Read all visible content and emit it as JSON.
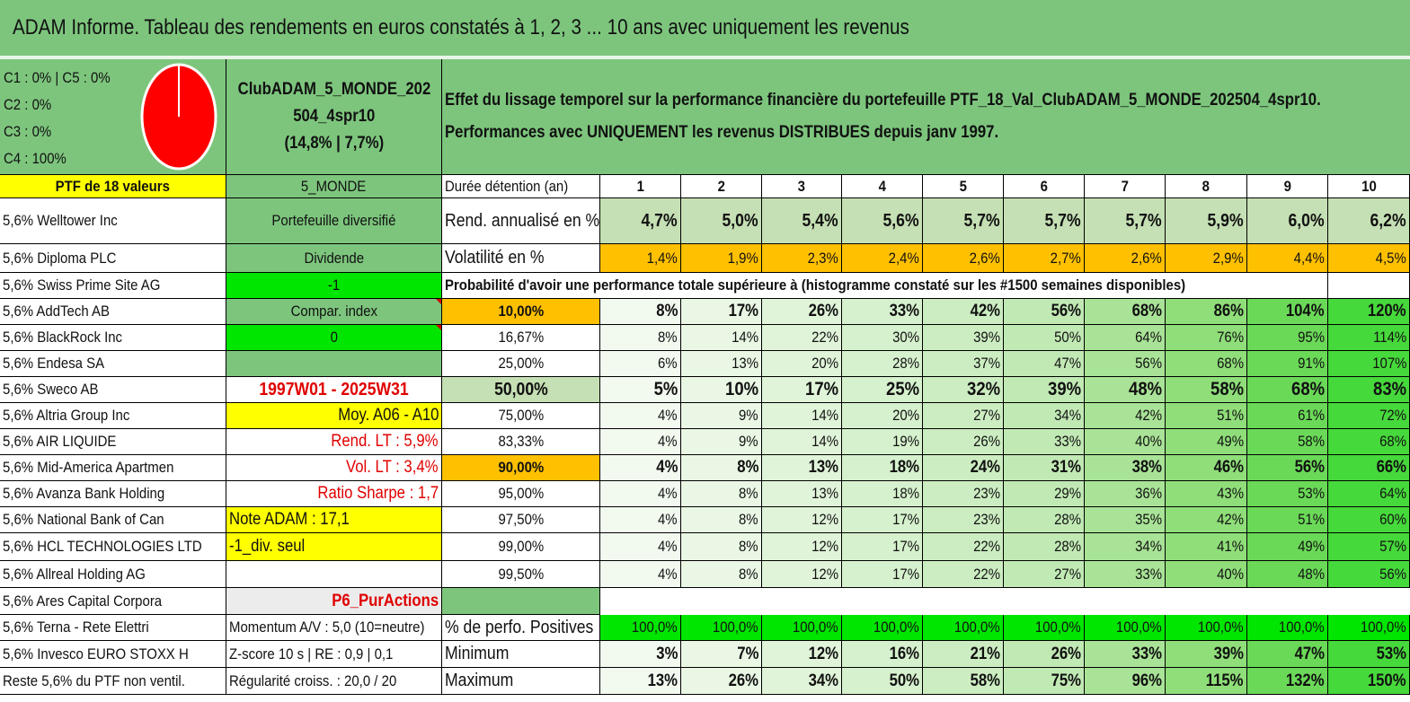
{
  "title": "ADAM Informe. Tableau des rendements en euros constatés à 1, 2, 3 ... 10 ans avec uniquement les revenus",
  "pie": {
    "legend": [
      "C1 : 0% | C5 : 0%",
      "C2 : 0%",
      "C3 : 0%",
      "C4 : 100%"
    ],
    "fill_color": "#ff0000"
  },
  "fund": {
    "name_line1": "ClubADAM_5_MONDE_202",
    "name_line2": "504_4spr10",
    "name_line3": "(14,8% | 7,7%)"
  },
  "description": {
    "line1": "Effet du lissage temporel sur la performance financière du portefeuille PTF_18_Val_ClubADAM_5_MONDE_202504_4spr10.",
    "line2": "Performances avec UNIQUEMENT les revenus DISTRIBUES depuis janv 1997."
  },
  "ptf_header": "PTF de 18 valeurs",
  "category": "5_MONDE",
  "holding_label": "Durée détention (an)",
  "years": [
    "1",
    "2",
    "3",
    "4",
    "5",
    "6",
    "7",
    "8",
    "9",
    "10"
  ],
  "holdings": [
    "5,6% Welltower Inc",
    "5,6% Diploma PLC",
    "5,6% Swiss Prime Site AG",
    "5,6% AddTech AB",
    "5,6% BlackRock Inc",
    "5,6% Endesa SA",
    "5,6% Sweco AB",
    "5,6% Altria Group Inc",
    "5,6% AIR LIQUIDE",
    "5,6% Mid-America Apartmen",
    "5,6% Avanza Bank Holding",
    "5,6% National Bank of Can",
    "5,6% HCL TECHNOLOGIES LTD",
    "5,6% Allreal Holding AG",
    "5,6% Ares Capital Corpora",
    "5,6% Terna - Rete Elettri",
    "5,6% Invesco EURO STOXX H",
    "Reste 5,6% du PTF non ventil."
  ],
  "info": [
    "Portefeuille diversifié",
    "Dividende",
    "-1",
    "Compar. index",
    "0",
    "",
    "1997W01 - 2025W31",
    "Moy. A06 - A10",
    "Rend. LT : 5,9%",
    "Vol. LT : 3,4%",
    "Ratio Sharpe : 1,7",
    "Note ADAM : 17,1",
    "-1_div. seul",
    "",
    "P6_PurActions",
    "Momentum A/V : 5,0 (10=neutre)",
    "Z-score 10 s | RE : 0,9 | 0,1",
    "Régularité croiss. : 20,0 / 20"
  ],
  "rend": {
    "label": "Rend. annualisé en %",
    "values": [
      "4,7%",
      "5,0%",
      "5,4%",
      "5,6%",
      "5,7%",
      "5,7%",
      "5,7%",
      "5,9%",
      "6,0%",
      "6,2%"
    ]
  },
  "vol": {
    "label": "Volatilité en %",
    "values": [
      "1,4%",
      "1,9%",
      "2,3%",
      "2,4%",
      "2,6%",
      "2,7%",
      "2,6%",
      "2,9%",
      "4,4%",
      "4,5%"
    ]
  },
  "prob_title": "Probabilité d'avoir une performance totale supérieure à (histogramme constaté sur les #1500 semaines disponibles)",
  "prob_rows": [
    {
      "p": "10,00%",
      "v": [
        "8%",
        "17%",
        "26%",
        "33%",
        "42%",
        "56%",
        "68%",
        "86%",
        "104%",
        "120%"
      ]
    },
    {
      "p": "16,67%",
      "v": [
        "8%",
        "14%",
        "22%",
        "30%",
        "39%",
        "50%",
        "64%",
        "76%",
        "95%",
        "114%"
      ]
    },
    {
      "p": "25,00%",
      "v": [
        "6%",
        "13%",
        "20%",
        "28%",
        "37%",
        "47%",
        "56%",
        "68%",
        "91%",
        "107%"
      ]
    },
    {
      "p": "50,00%",
      "v": [
        "5%",
        "10%",
        "17%",
        "25%",
        "32%",
        "39%",
        "48%",
        "58%",
        "68%",
        "83%"
      ]
    },
    {
      "p": "75,00%",
      "v": [
        "4%",
        "9%",
        "14%",
        "20%",
        "27%",
        "34%",
        "42%",
        "51%",
        "61%",
        "72%"
      ]
    },
    {
      "p": "83,33%",
      "v": [
        "4%",
        "9%",
        "14%",
        "19%",
        "26%",
        "33%",
        "40%",
        "49%",
        "58%",
        "68%"
      ]
    },
    {
      "p": "90,00%",
      "v": [
        "4%",
        "8%",
        "13%",
        "18%",
        "24%",
        "31%",
        "38%",
        "46%",
        "56%",
        "66%"
      ]
    },
    {
      "p": "95,00%",
      "v": [
        "4%",
        "8%",
        "13%",
        "18%",
        "23%",
        "29%",
        "36%",
        "43%",
        "53%",
        "64%"
      ]
    },
    {
      "p": "97,50%",
      "v": [
        "4%",
        "8%",
        "12%",
        "17%",
        "23%",
        "28%",
        "35%",
        "42%",
        "51%",
        "60%"
      ]
    },
    {
      "p": "99,00%",
      "v": [
        "4%",
        "8%",
        "12%",
        "17%",
        "22%",
        "28%",
        "34%",
        "41%",
        "49%",
        "57%"
      ]
    },
    {
      "p": "99,50%",
      "v": [
        "4%",
        "8%",
        "12%",
        "17%",
        "22%",
        "27%",
        "33%",
        "40%",
        "48%",
        "56%"
      ]
    }
  ],
  "positives": {
    "label": "% de perfo. Positives",
    "values": [
      "100,0%",
      "100,0%",
      "100,0%",
      "100,0%",
      "100,0%",
      "100,0%",
      "100,0%",
      "100,0%",
      "100,0%",
      "100,0%"
    ]
  },
  "minimum": {
    "label": "Minimum",
    "values": [
      "3%",
      "7%",
      "12%",
      "16%",
      "21%",
      "26%",
      "33%",
      "39%",
      "47%",
      "53%"
    ]
  },
  "maximum": {
    "label": "Maximum",
    "values": [
      "13%",
      "26%",
      "34%",
      "50%",
      "58%",
      "75%",
      "96%",
      "115%",
      "132%",
      "150%"
    ]
  },
  "colors": {
    "header_green": "#7dc57d",
    "pale_green": "#c5e0b4",
    "light_green": "#e2f0d9",
    "yellow": "#ffff00",
    "orange": "#ffc000",
    "bright_green": "#00e600",
    "red_text": "#e00000"
  }
}
